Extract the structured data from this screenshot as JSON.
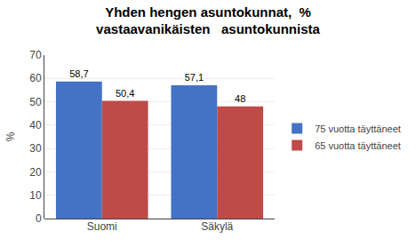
{
  "chart_data": {
    "type": "bar",
    "title": "Yhden hengen asuntokunnat,  %\nvastaavanikäisten   asuntokunnista",
    "categories": [
      "Suomi",
      "Säkylä"
    ],
    "series": [
      {
        "name": "75 vuotta täyttäneet",
        "color": "#4472C4",
        "values": [
          58.7,
          57.1
        ],
        "value_labels": [
          "58,7",
          "57,1"
        ]
      },
      {
        "name": "65 vuotta täyttäneet",
        "color": "#BE4B48",
        "values": [
          50.4,
          48.0
        ],
        "value_labels": [
          "50,4",
          "48"
        ]
      }
    ],
    "ylabel": "%",
    "ylim": [
      0,
      70
    ],
    "yticks": [
      0,
      10,
      20,
      30,
      40,
      50,
      60,
      70
    ],
    "grid": true,
    "legend": "right",
    "data_labels": true
  }
}
